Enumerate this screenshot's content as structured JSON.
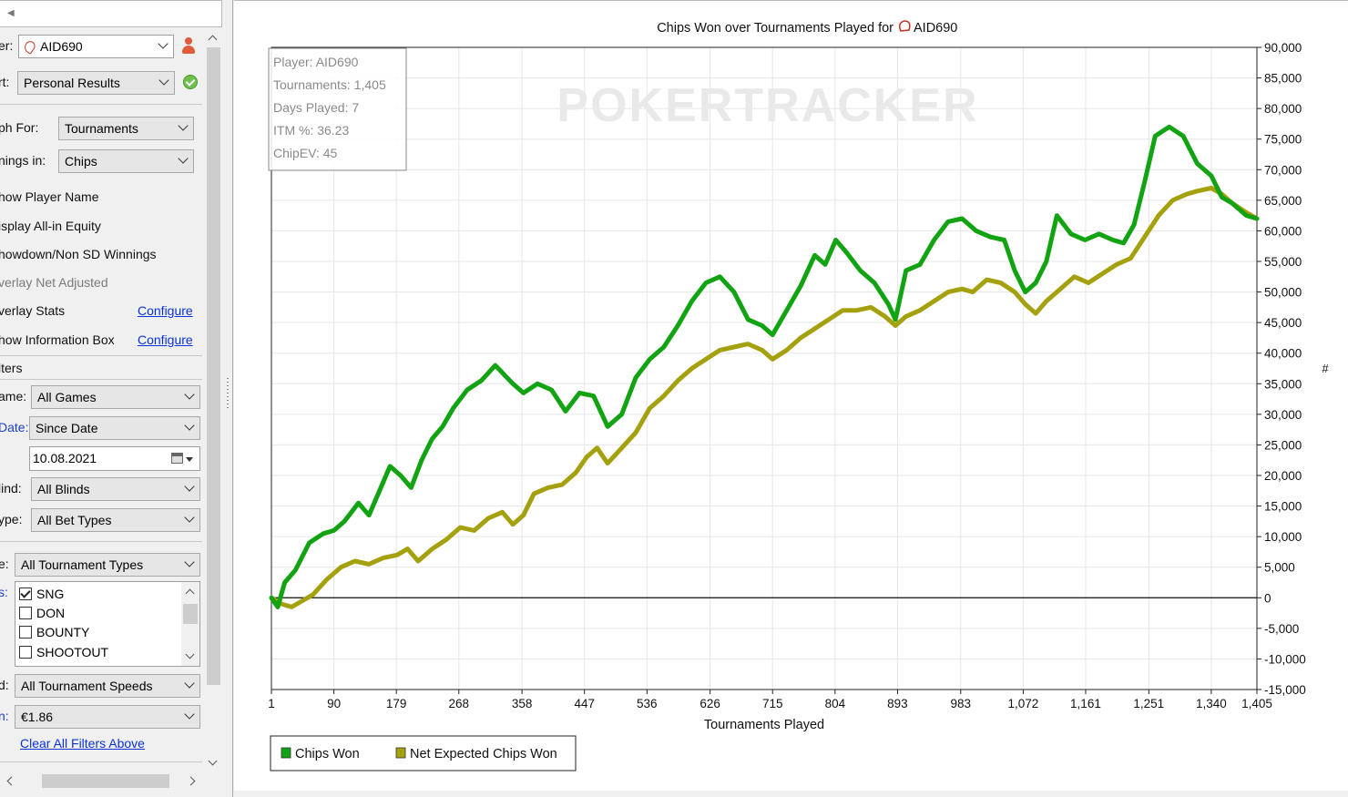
{
  "sidebar": {
    "player_label": "er:",
    "player_value": "AID690",
    "report_label": "rt:",
    "report_value": "Personal Results",
    "graph_for_label": "ph For:",
    "graph_for_value": "Tournaments",
    "winnings_label": "nings in:",
    "winnings_value": "Chips",
    "options": [
      "how Player Name",
      "isplay All-in Equity",
      "howdown/Non SD Winnings",
      "verlay Net Adjusted",
      "verlay Stats",
      "how Information Box"
    ],
    "configure_label": "Configure",
    "filters_header": "lters",
    "game_label": "ame:",
    "game_value": "All Games",
    "date_label": "Date:",
    "date_value": "Since Date",
    "date_field": "10.08.2021",
    "blind_label": "lind:",
    "blind_value": "All Blinds",
    "bettype_label": "ype:",
    "bettype_value": "All Bet Types",
    "tourn_type_label": "e:",
    "tourn_type_value": "All Tournament Types",
    "types_label": "s:",
    "types": [
      {
        "label": "SNG",
        "checked": true
      },
      {
        "label": "DON",
        "checked": false
      },
      {
        "label": "BOUNTY",
        "checked": false
      },
      {
        "label": "SHOOTOUT",
        "checked": false
      }
    ],
    "speed_label": "d:",
    "speed_value": "All Tournament Speeds",
    "buyin_label": "n:",
    "buyin_value": "€1.86",
    "clear_filters": "Clear All Filters Above"
  },
  "chart_data": {
    "type": "line",
    "title": "Chips Won over Tournaments Played for",
    "title_player": "AID690",
    "watermark": "POKERTRACKER",
    "xlabel": "Tournaments Played",
    "ylabel": "#",
    "xlim": [
      1,
      1405
    ],
    "ylim": [
      -15000,
      90000
    ],
    "x_ticks": [
      "1",
      "90",
      "179",
      "268",
      "358",
      "447",
      "536",
      "626",
      "715",
      "804",
      "893",
      "983",
      "1,072",
      "1,161",
      "1,251",
      "1,340",
      "1,405"
    ],
    "x_tick_values": [
      1,
      90,
      179,
      268,
      358,
      447,
      536,
      626,
      715,
      804,
      893,
      983,
      1072,
      1161,
      1251,
      1340,
      1405
    ],
    "y_ticks": [
      "-15,000",
      "-10,000",
      "-5,000",
      "0",
      "5,000",
      "10,000",
      "15,000",
      "20,000",
      "25,000",
      "30,000",
      "35,000",
      "40,000",
      "45,000",
      "50,000",
      "55,000",
      "60,000",
      "65,000",
      "70,000",
      "75,000",
      "80,000",
      "85,000",
      "90,000"
    ],
    "y_tick_values": [
      -15000,
      -10000,
      -5000,
      0,
      5000,
      10000,
      15000,
      20000,
      25000,
      30000,
      35000,
      40000,
      45000,
      50000,
      55000,
      60000,
      65000,
      70000,
      75000,
      80000,
      85000,
      90000
    ],
    "info_box": [
      "Player: AID690",
      "Tournaments: 1,405",
      "Days Played: 7",
      "ITM %: 36.23",
      "ChipEV: 45"
    ],
    "legend_placement": "bottom-left",
    "series": [
      {
        "name": "Chips Won",
        "color": "#12a312",
        "points": [
          [
            1,
            0
          ],
          [
            10,
            -1500
          ],
          [
            20,
            2500
          ],
          [
            35,
            4500
          ],
          [
            55,
            9000
          ],
          [
            75,
            10500
          ],
          [
            90,
            11000
          ],
          [
            105,
            12500
          ],
          [
            125,
            15500
          ],
          [
            140,
            13500
          ],
          [
            155,
            17500
          ],
          [
            170,
            21500
          ],
          [
            185,
            20000
          ],
          [
            200,
            18000
          ],
          [
            215,
            22500
          ],
          [
            230,
            26000
          ],
          [
            245,
            28000
          ],
          [
            260,
            31000
          ],
          [
            280,
            34000
          ],
          [
            300,
            35500
          ],
          [
            320,
            38000
          ],
          [
            345,
            35000
          ],
          [
            360,
            33500
          ],
          [
            380,
            35000
          ],
          [
            400,
            34000
          ],
          [
            420,
            30500
          ],
          [
            440,
            33500
          ],
          [
            460,
            33000
          ],
          [
            480,
            28000
          ],
          [
            500,
            30000
          ],
          [
            520,
            36000
          ],
          [
            540,
            39000
          ],
          [
            560,
            41000
          ],
          [
            580,
            44500
          ],
          [
            600,
            48500
          ],
          [
            620,
            51500
          ],
          [
            640,
            52500
          ],
          [
            660,
            50000
          ],
          [
            680,
            45500
          ],
          [
            700,
            44500
          ],
          [
            715,
            43000
          ],
          [
            735,
            47000
          ],
          [
            755,
            51000
          ],
          [
            775,
            56000
          ],
          [
            790,
            54500
          ],
          [
            805,
            58500
          ],
          [
            820,
            56500
          ],
          [
            840,
            53500
          ],
          [
            860,
            51500
          ],
          [
            880,
            48000
          ],
          [
            890,
            45500
          ],
          [
            905,
            53500
          ],
          [
            925,
            54500
          ],
          [
            945,
            58500
          ],
          [
            965,
            61500
          ],
          [
            985,
            62000
          ],
          [
            1005,
            60000
          ],
          [
            1025,
            59000
          ],
          [
            1045,
            58500
          ],
          [
            1060,
            53500
          ],
          [
            1075,
            50000
          ],
          [
            1090,
            51500
          ],
          [
            1105,
            55000
          ],
          [
            1120,
            62500
          ],
          [
            1140,
            59500
          ],
          [
            1160,
            58500
          ],
          [
            1180,
            59500
          ],
          [
            1200,
            58500
          ],
          [
            1215,
            58000
          ],
          [
            1230,
            61000
          ],
          [
            1245,
            68000
          ],
          [
            1260,
            75500
          ],
          [
            1280,
            77000
          ],
          [
            1300,
            75500
          ],
          [
            1320,
            71000
          ],
          [
            1340,
            69000
          ],
          [
            1355,
            65500
          ],
          [
            1370,
            64500
          ],
          [
            1390,
            62500
          ],
          [
            1405,
            62000
          ]
        ]
      },
      {
        "name": "Net Expected Chips Won",
        "color": "#a5a10e",
        "points": [
          [
            1,
            0
          ],
          [
            15,
            -1000
          ],
          [
            30,
            -1500
          ],
          [
            45,
            -500
          ],
          [
            60,
            500
          ],
          [
            80,
            3000
          ],
          [
            100,
            5000
          ],
          [
            120,
            6000
          ],
          [
            140,
            5500
          ],
          [
            160,
            6500
          ],
          [
            180,
            7000
          ],
          [
            195,
            8000
          ],
          [
            210,
            6000
          ],
          [
            230,
            8000
          ],
          [
            250,
            9500
          ],
          [
            270,
            11500
          ],
          [
            290,
            11000
          ],
          [
            310,
            13000
          ],
          [
            330,
            14000
          ],
          [
            345,
            12000
          ],
          [
            360,
            13500
          ],
          [
            375,
            17000
          ],
          [
            395,
            18000
          ],
          [
            415,
            18500
          ],
          [
            435,
            20500
          ],
          [
            450,
            23000
          ],
          [
            465,
            24500
          ],
          [
            480,
            22000
          ],
          [
            500,
            24500
          ],
          [
            520,
            27000
          ],
          [
            540,
            31000
          ],
          [
            560,
            33000
          ],
          [
            580,
            35500
          ],
          [
            600,
            37500
          ],
          [
            620,
            39000
          ],
          [
            640,
            40500
          ],
          [
            660,
            41000
          ],
          [
            680,
            41500
          ],
          [
            700,
            40500
          ],
          [
            715,
            39000
          ],
          [
            735,
            40500
          ],
          [
            755,
            42500
          ],
          [
            775,
            44000
          ],
          [
            795,
            45500
          ],
          [
            815,
            47000
          ],
          [
            835,
            47000
          ],
          [
            855,
            47500
          ],
          [
            875,
            46000
          ],
          [
            890,
            44500
          ],
          [
            905,
            46000
          ],
          [
            925,
            47000
          ],
          [
            945,
            48500
          ],
          [
            965,
            50000
          ],
          [
            985,
            50500
          ],
          [
            1000,
            50000
          ],
          [
            1020,
            52000
          ],
          [
            1040,
            51500
          ],
          [
            1060,
            50000
          ],
          [
            1075,
            48000
          ],
          [
            1090,
            46500
          ],
          [
            1105,
            48500
          ],
          [
            1125,
            50500
          ],
          [
            1145,
            52500
          ],
          [
            1165,
            51500
          ],
          [
            1185,
            53000
          ],
          [
            1205,
            54500
          ],
          [
            1225,
            55500
          ],
          [
            1245,
            59000
          ],
          [
            1265,
            62500
          ],
          [
            1285,
            65000
          ],
          [
            1305,
            66000
          ],
          [
            1320,
            66500
          ],
          [
            1340,
            67000
          ],
          [
            1355,
            66000
          ],
          [
            1370,
            64500
          ],
          [
            1390,
            63000
          ],
          [
            1405,
            62000
          ]
        ]
      }
    ]
  }
}
